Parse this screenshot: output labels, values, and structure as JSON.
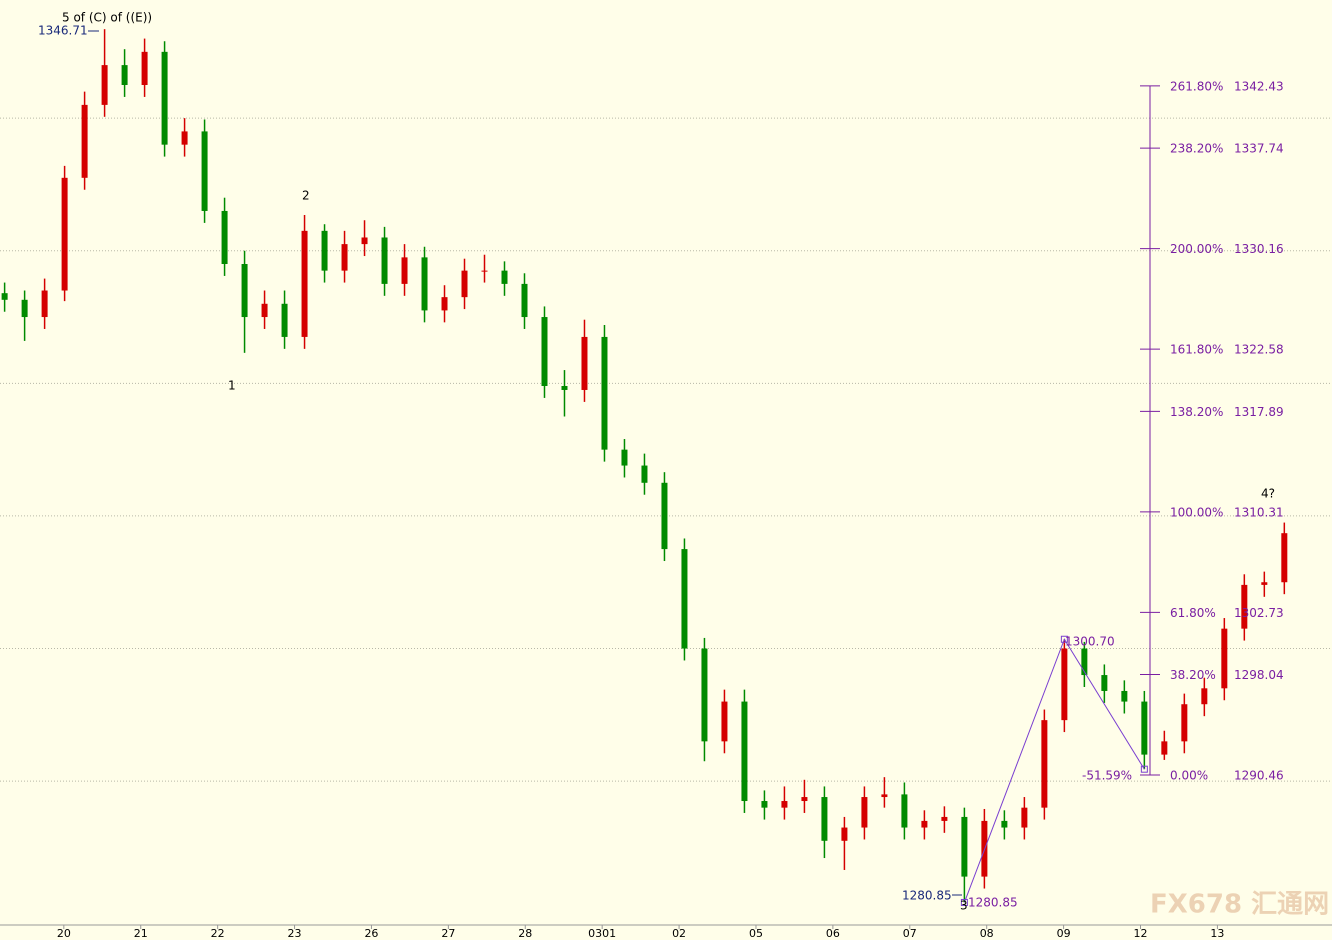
{
  "chart_data": {
    "type": "candlestick",
    "up_color": "#d40000",
    "down_color": "#008a00",
    "xlim": [
      -0.83,
      16.49
    ],
    "ylim": [
      1279.15,
      1348.91
    ],
    "grid": true,
    "yticks": [
      1290,
      1300,
      1310,
      1320,
      1330,
      1340
    ],
    "xticks": [
      {
        "value": 0,
        "label": "20"
      },
      {
        "value": 1,
        "label": "21"
      },
      {
        "value": 2,
        "label": "22"
      },
      {
        "value": 3,
        "label": "23"
      },
      {
        "value": 4,
        "label": "26"
      },
      {
        "value": 5,
        "label": "27"
      },
      {
        "value": 6,
        "label": "28"
      },
      {
        "value": 7,
        "label": "0301"
      },
      {
        "value": 8,
        "label": "02"
      },
      {
        "value": 9,
        "label": "05"
      },
      {
        "value": 10,
        "label": "06"
      },
      {
        "value": 11,
        "label": "07"
      },
      {
        "value": 12,
        "label": "08"
      },
      {
        "value": 13,
        "label": "09"
      },
      {
        "value": 14,
        "label": "12"
      },
      {
        "value": 15,
        "label": "13"
      }
    ],
    "x": [
      -0.77,
      -0.51,
      -0.25,
      0.01,
      0.27,
      0.53,
      0.79,
      1.05,
      1.31,
      1.57,
      1.83,
      2.09,
      2.35,
      2.61,
      2.87,
      3.13,
      3.39,
      3.65,
      3.91,
      4.17,
      4.43,
      4.69,
      4.95,
      5.21,
      5.47,
      5.73,
      5.99,
      6.25,
      6.51,
      6.77,
      7.03,
      7.29,
      7.55,
      7.81,
      8.07,
      8.33,
      8.59,
      8.85,
      9.11,
      9.37,
      9.63,
      9.89,
      10.15,
      10.41,
      10.67,
      10.93,
      11.19,
      11.45,
      11.71,
      11.97,
      12.23,
      12.49,
      12.75,
      13.01,
      13.27,
      13.53,
      13.79,
      14.05,
      14.31,
      14.57,
      14.83,
      15.09,
      15.35,
      15.61,
      15.87
    ],
    "open": [
      1326.8,
      1326.3,
      1325,
      1327,
      1335.5,
      1341,
      1344,
      1342.5,
      1345,
      1338,
      1339,
      1333,
      1329,
      1325,
      1326,
      1323.5,
      1331.5,
      1328.5,
      1330.5,
      1331,
      1327.5,
      1329.5,
      1325.5,
      1326.5,
      1328.5,
      1328.5,
      1327.5,
      1325,
      1319.8,
      1319.5,
      1323.5,
      1315,
      1313.8,
      1312.5,
      1307.5,
      1300,
      1293,
      1296,
      1288.5,
      1288,
      1288.5,
      1288.8,
      1285.5,
      1286.5,
      1288.8,
      1289,
      1286.5,
      1287,
      1287.3,
      1282.8,
      1287,
      1286.5,
      1288,
      1294.6,
      1300,
      1298,
      1296.8,
      1296,
      1292,
      1293,
      1295.8,
      1297,
      1301.5,
      1304.8,
      1305
    ],
    "high": [
      1327.6,
      1327,
      1327.9,
      1336.4,
      1342,
      1346.71,
      1345.2,
      1346,
      1345.8,
      1340,
      1339.9,
      1334,
      1330,
      1327,
      1327,
      1332.7,
      1332,
      1331.5,
      1332.3,
      1331.8,
      1330.5,
      1330.3,
      1327.4,
      1329.4,
      1329.7,
      1329.2,
      1328.3,
      1325.8,
      1321,
      1324.8,
      1324.4,
      1315.8,
      1314.7,
      1313.3,
      1308.3,
      1300.8,
      1296.9,
      1296.9,
      1289.3,
      1289.6,
      1290.1,
      1289.6,
      1287.3,
      1289.6,
      1290.3,
      1289.9,
      1287.8,
      1288.1,
      1288,
      1287.9,
      1287.8,
      1288.8,
      1295.4,
      1300.7,
      1300.5,
      1298.8,
      1297.6,
      1296.8,
      1293.8,
      1296.6,
      1297.8,
      1302.3,
      1305.6,
      1305.8,
      1309.5
    ],
    "low": [
      1325.4,
      1323.2,
      1324.1,
      1326.2,
      1334.6,
      1340.1,
      1341.6,
      1341.6,
      1337.1,
      1337.1,
      1332.1,
      1328.1,
      1322.3,
      1324.1,
      1322.6,
      1322.6,
      1327.6,
      1327.6,
      1329.6,
      1326.6,
      1326.6,
      1324.6,
      1324.6,
      1325.6,
      1327.6,
      1326.6,
      1324.1,
      1318.9,
      1317.5,
      1318.6,
      1314.1,
      1312.9,
      1311.6,
      1306.6,
      1299.1,
      1291.5,
      1292.1,
      1287.6,
      1287.1,
      1287.1,
      1287.6,
      1284.2,
      1283.3,
      1285.6,
      1288,
      1285.6,
      1285.6,
      1286.1,
      1280.85,
      1281.9,
      1285.6,
      1285.6,
      1287.1,
      1293.7,
      1297.1,
      1295.9,
      1295.1,
      1290.9,
      1291.6,
      1292.1,
      1294.9,
      1296.1,
      1300.6,
      1303.9,
      1304.1
    ],
    "close": [
      1326.3,
      1325,
      1327,
      1335.5,
      1341,
      1344,
      1342.5,
      1345,
      1338,
      1339,
      1333,
      1329,
      1325,
      1326,
      1323.5,
      1331.5,
      1328.5,
      1330.5,
      1331,
      1327.5,
      1329.5,
      1325.5,
      1326.5,
      1328.5,
      1328.5,
      1327.5,
      1325,
      1319.8,
      1319.5,
      1323.5,
      1315,
      1313.8,
      1312.5,
      1307.5,
      1300,
      1293,
      1296,
      1288.5,
      1288,
      1288.5,
      1288.8,
      1285.5,
      1286.5,
      1288.8,
      1289,
      1286.5,
      1287,
      1287.3,
      1282.8,
      1287,
      1286.5,
      1288,
      1294.6,
      1300,
      1298,
      1296.8,
      1296,
      1292,
      1293,
      1295.8,
      1297,
      1301.5,
      1304.8,
      1305,
      1308.7
    ],
    "wave": {
      "color": "#7a3fd0",
      "x": [
        11.71,
        13.01,
        14.05
      ],
      "y": [
        1280.85,
        1300.7,
        1290.9
      ]
    },
    "fib_color": "#7a1fa2",
    "fib_levels": [
      {
        "ratio": {
          "value": 261.8,
          "label": "261.80%"
        },
        "price": 1342.43
      },
      {
        "ratio": {
          "value": 238.2,
          "label": "238.20%"
        },
        "price": 1337.74
      },
      {
        "ratio": {
          "value": 200,
          "label": "200.00%"
        },
        "price": 1330.16
      },
      {
        "ratio": {
          "value": 161.8,
          "label": "161.80%"
        },
        "price": 1322.58
      },
      {
        "ratio": {
          "value": 138.2,
          "label": "138.20%"
        },
        "price": 1317.89
      },
      {
        "ratio": {
          "value": 100,
          "label": "100.00%"
        },
        "price": 1310.31
      },
      {
        "ratio": {
          "value": 61.8,
          "label": "61.80%"
        },
        "price": 1302.73
      },
      {
        "ratio": {
          "value": 38.2,
          "label": "38.20%"
        },
        "price": 1298.04
      },
      {
        "ratio": {
          "value": 0,
          "label": "0.00%"
        },
        "price": 1290.46
      }
    ],
    "annotations": {
      "wave_top": "5 of (C) of ((E))",
      "top_price": 1346.71,
      "wave1": "1",
      "wave2": "2",
      "wave3": "3",
      "low_price": 1280.85,
      "low_price_2": 1280.85,
      "swing_high": {
        "value": 1300.7,
        "label": "1300.70"
      },
      "retrace": {
        "value": -51.59,
        "label": "-51.59%"
      },
      "wave4": "4?"
    },
    "watermark": "FX678 汇通网"
  }
}
